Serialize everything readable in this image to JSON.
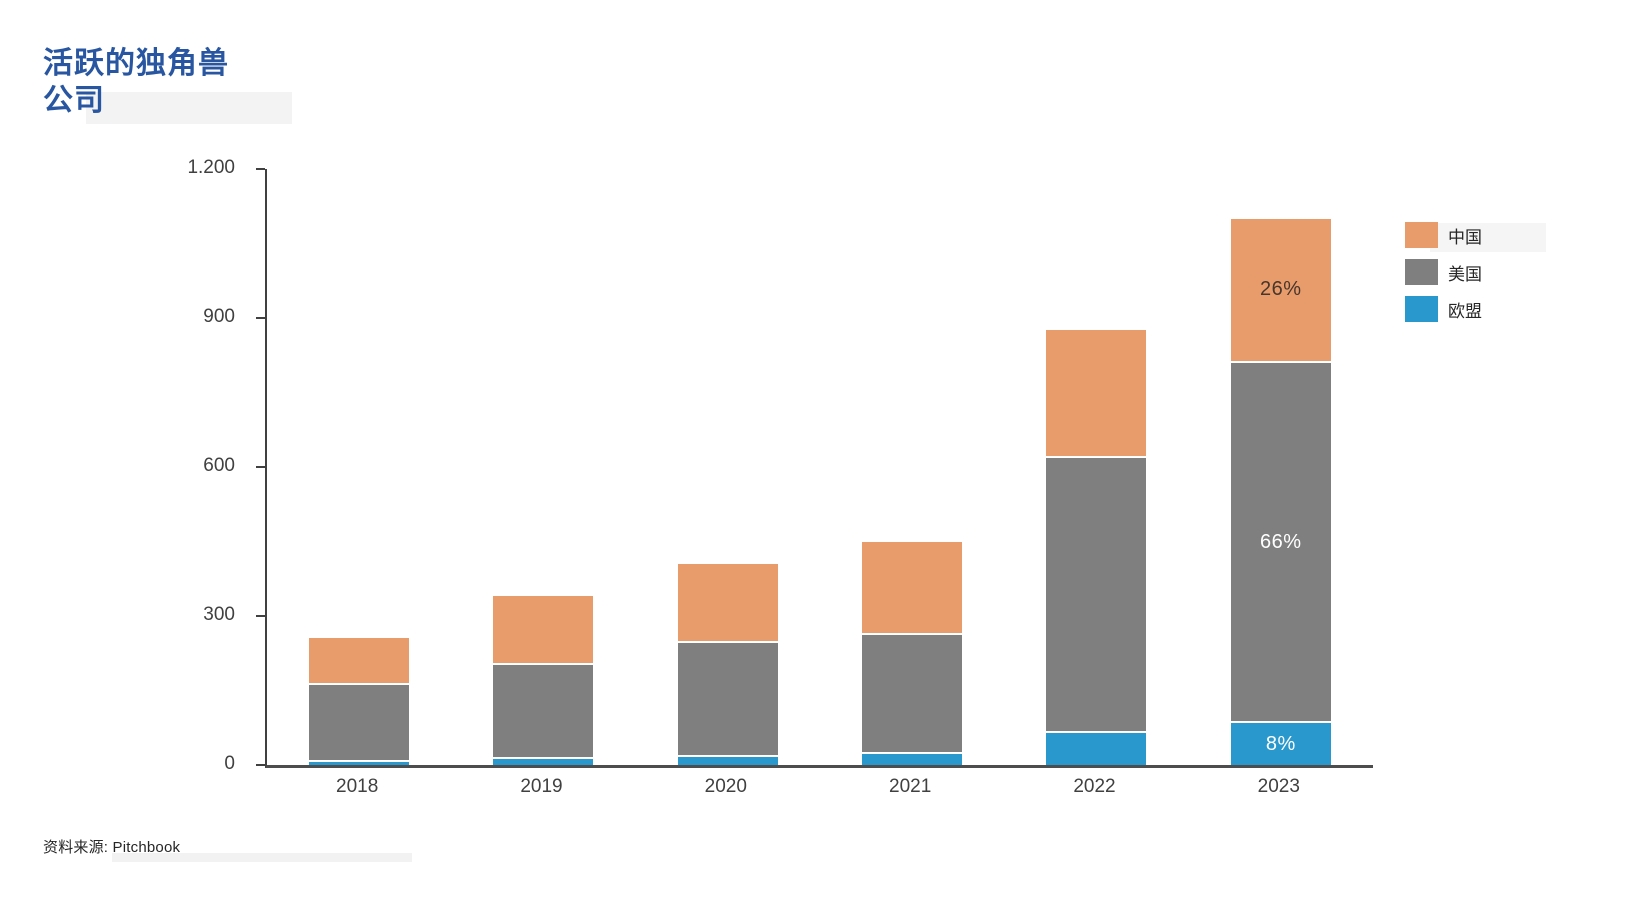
{
  "title": {
    "line1": "活跃的独角兽",
    "line2": "公司",
    "color": "#2856A0"
  },
  "source": {
    "text": "资料来源:  Pitchbook"
  },
  "colors": {
    "axis_y": "#404040",
    "axis_x": "#4d4d4d",
    "tick_text": "#404040",
    "xlabel_text": "#404040",
    "china_orange": "#E99C6B",
    "us_gray": "#7F7F7F",
    "eu_blue": "#2998CD",
    "title_blue": "#2856A0"
  },
  "chart_data": {
    "type": "bar",
    "stacked": true,
    "title": "活跃的独角兽公司",
    "xlabel": "",
    "ylabel": "",
    "grid": false,
    "ylim": [
      0,
      1200
    ],
    "yticks": [
      {
        "value": 0,
        "label": "0"
      },
      {
        "value": 300,
        "label": "300"
      },
      {
        "value": 600,
        "label": "600"
      },
      {
        "value": 900,
        "label": "900"
      },
      {
        "value": 1200,
        "label": "1.200"
      }
    ],
    "categories": [
      "2018",
      "2019",
      "2020",
      "2021",
      "2022",
      "2023"
    ],
    "series": [
      {
        "key": "eu",
        "name": "欧盟",
        "color": "#2998CD",
        "values": [
          10,
          16,
          20,
          26,
          68,
          88
        ],
        "pct_labels": {
          "2023": "8%"
        },
        "pct_label_color": "#ffffff"
      },
      {
        "key": "us",
        "name": "美国",
        "color": "#7F7F7F",
        "values": [
          155,
          190,
          230,
          240,
          555,
          726
        ],
        "pct_labels": {
          "2023": "66%"
        },
        "pct_label_color": "#ffffff"
      },
      {
        "key": "cn",
        "name": "中国",
        "color": "#E99C6B",
        "values": [
          90,
          134,
          155,
          184,
          252,
          286
        ],
        "pct_labels": {
          "2023": "26%"
        },
        "pct_label_color": "#46362C"
      }
    ],
    "totals": [
      255,
      340,
      405,
      450,
      875,
      1100
    ],
    "legend": {
      "position": "top-right",
      "order": [
        "cn",
        "us",
        "eu"
      ]
    }
  }
}
